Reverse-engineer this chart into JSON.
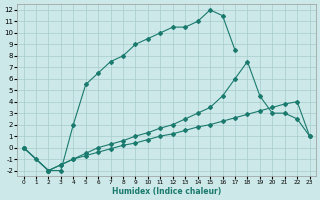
{
  "xlabel": "Humidex (Indice chaleur)",
  "bg_color": "#cce8e8",
  "grid_color": "#a8cccc",
  "line_color": "#1a7a6e",
  "xlim": [
    -0.5,
    23.5
  ],
  "ylim": [
    -2.5,
    12.5
  ],
  "xticks": [
    0,
    1,
    2,
    3,
    4,
    5,
    6,
    7,
    8,
    9,
    10,
    11,
    12,
    13,
    14,
    15,
    16,
    17,
    18,
    19,
    20,
    21,
    22,
    23
  ],
  "yticks": [
    -2,
    -1,
    0,
    1,
    2,
    3,
    4,
    5,
    6,
    7,
    8,
    9,
    10,
    11,
    12
  ],
  "line1_x": [
    0,
    1,
    2,
    3,
    4,
    5,
    6,
    7,
    8,
    9,
    10,
    11,
    12,
    13,
    14,
    15,
    16,
    17
  ],
  "line1_y": [
    0.0,
    -1.0,
    -2.0,
    -2.0,
    2.0,
    5.5,
    6.5,
    7.5,
    8.0,
    9.0,
    9.5,
    10.0,
    10.5,
    10.5,
    11.0,
    12.0,
    11.5,
    8.5
  ],
  "line2_x": [
    0,
    2,
    3,
    4,
    5,
    6,
    7,
    8,
    9,
    10,
    11,
    12,
    13,
    14,
    15,
    16,
    17,
    18,
    19,
    20,
    21,
    22,
    23
  ],
  "line2_y": [
    0.0,
    -2.0,
    -1.5,
    -1.0,
    -0.5,
    0.0,
    0.3,
    0.6,
    1.0,
    1.3,
    1.7,
    2.0,
    2.5,
    3.0,
    3.5,
    4.5,
    6.0,
    7.5,
    4.5,
    3.0,
    3.0,
    2.5,
    1.0
  ],
  "line3_x": [
    0,
    2,
    3,
    4,
    5,
    6,
    7,
    8,
    9,
    10,
    11,
    12,
    13,
    14,
    15,
    16,
    17,
    18,
    19,
    20,
    21,
    22,
    23
  ],
  "line3_y": [
    0.0,
    -2.0,
    -1.5,
    -1.0,
    -0.7,
    -0.4,
    -0.1,
    0.2,
    0.4,
    0.7,
    1.0,
    1.2,
    1.5,
    1.8,
    2.0,
    2.3,
    2.6,
    2.9,
    3.2,
    3.5,
    3.8,
    4.0,
    1.0
  ]
}
